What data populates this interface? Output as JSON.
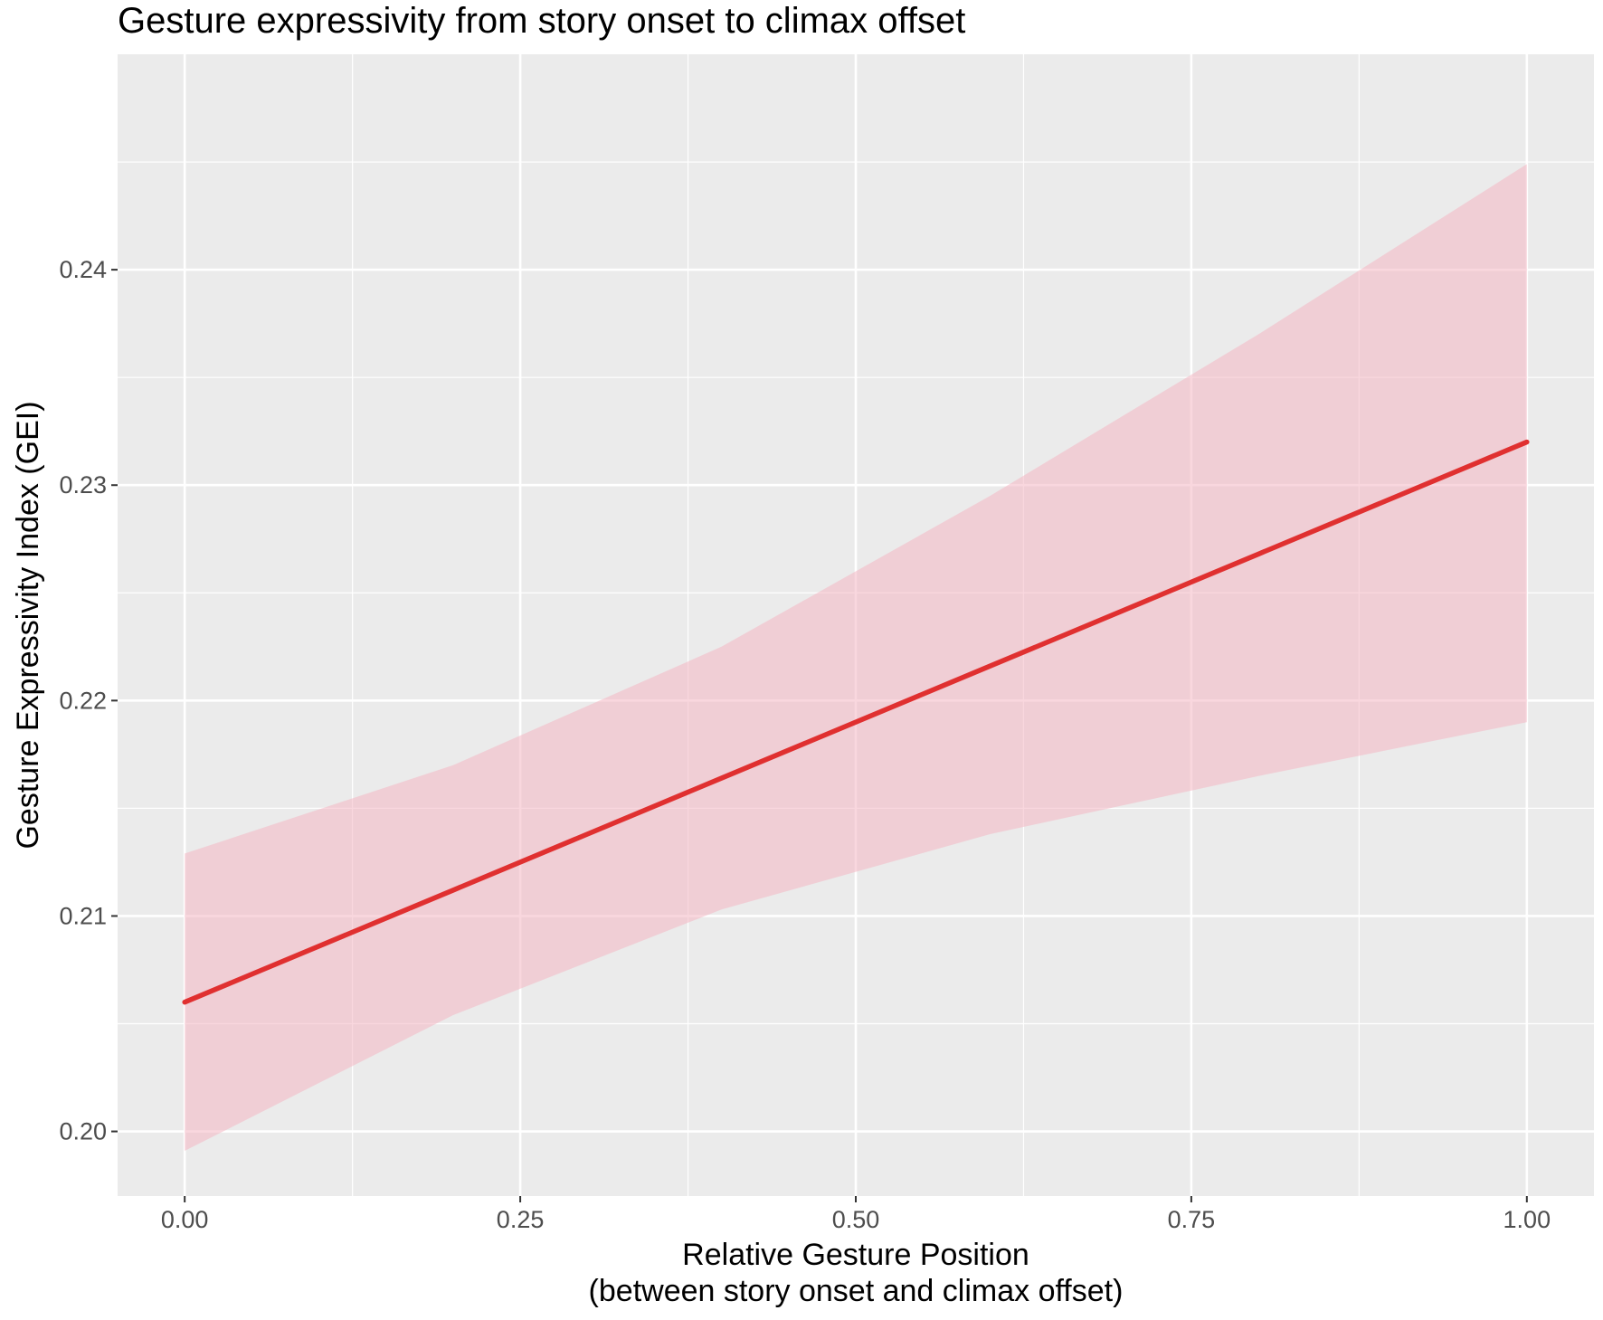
{
  "chart_data": {
    "type": "line",
    "title": "Gesture expressivity from story onset to climax offset",
    "xlabel_lines": [
      "Relative Gesture Position",
      "(between story onset and climax offset)"
    ],
    "ylabel": "Gesture Expressivity Index (GEI)",
    "xlim": [
      -0.05,
      1.05
    ],
    "ylim": [
      0.197,
      0.25
    ],
    "x_ticks": [
      0.0,
      0.25,
      0.5,
      0.75,
      1.0
    ],
    "x_tick_labels": [
      "0.00",
      "0.25",
      "0.50",
      "0.75",
      "1.00"
    ],
    "y_ticks": [
      0.2,
      0.21,
      0.22,
      0.23,
      0.24
    ],
    "y_tick_labels": [
      "0.20",
      "0.21",
      "0.22",
      "0.23",
      "0.24"
    ],
    "grid": true,
    "legend": "none",
    "series": [
      {
        "x": [
          0.0,
          0.2,
          0.4,
          0.6,
          0.8,
          1.0
        ],
        "y": [
          0.206,
          0.2112,
          0.2164,
          0.2216,
          0.2268,
          0.232
        ],
        "ci_lower": [
          0.1991,
          0.2054,
          0.2103,
          0.2138,
          0.2165,
          0.219
        ],
        "ci_upper": [
          0.2129,
          0.217,
          0.2225,
          0.2295,
          0.237,
          0.2449
        ],
        "color": "#e03030",
        "band_color": "#f4b6c2"
      }
    ],
    "colors": {
      "panel_background": "#ebebeb",
      "grid_major": "#ffffff",
      "line": "#e03030",
      "band": "#f4b6c2"
    }
  }
}
